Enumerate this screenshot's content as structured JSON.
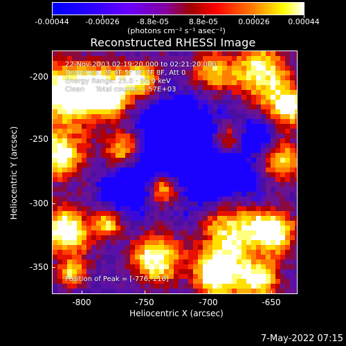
{
  "colorbar": {
    "ticks": [
      "-0.00044",
      "-0.00026",
      "-8.8e-05",
      "8.8e-05",
      "0.00026",
      "0.00044"
    ],
    "unit": "(photons cm⁻² s⁻¹ asec⁻²)",
    "range": [
      -0.00044,
      0.00044
    ],
    "colors": [
      "#0000ff",
      "#6a00ff",
      "#a00000",
      "#ff0000",
      "#ff8000",
      "#ffff00",
      "#ffffff"
    ]
  },
  "chart_data": {
    "type": "heatmap",
    "title": "Reconstructed RHESSI Image",
    "xlabel": "Heliocentric X (arcsec)",
    "ylabel": "Heliocentric Y (arcsec)",
    "xlim": [
      -820,
      -625
    ],
    "ylim": [
      -372,
      -180
    ],
    "xticks": [
      "-800",
      "-750",
      "-700",
      "-650"
    ],
    "yticks": [
      "-200",
      "-250",
      "-300",
      "-350"
    ],
    "annotations": [
      "22-Nov-2003 02:19:20.000 to 02:21:20.000",
      "Detectors: 3F 4F 5F 6F 7F 8F, Att 0",
      "Energy Range: 25.0 - 50.0 keV",
      "Clean     Total counts: 1.57E+03",
      "Position of Peak = [-776,-216]"
    ],
    "peak": [
      -776,
      -216
    ]
  },
  "footer": {
    "date": "7-May-2022 07:15"
  }
}
